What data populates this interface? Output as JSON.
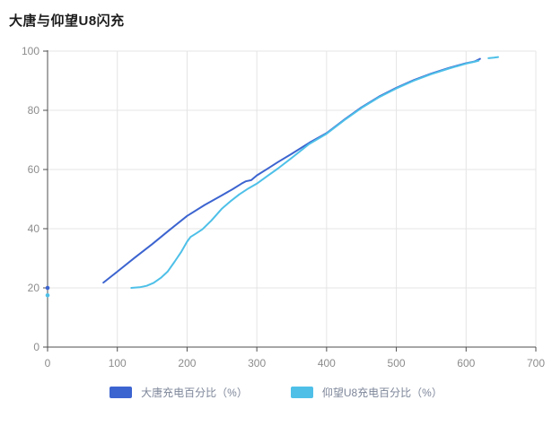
{
  "title": "大唐与仰望U8闪充",
  "colors": {
    "series_datang": "#3C64D0",
    "series_yangwang": "#4EC0E8",
    "grid": "#e4e4e4",
    "axis": "#4f4f4f",
    "tick_text": "#8c8c8c",
    "legend_text": "#7d8699",
    "title_text": "#1c1c1c",
    "background": "#ffffff"
  },
  "legend": {
    "items": [
      {
        "label": "大唐充电百分比（%）",
        "color": "#3C64D0"
      },
      {
        "label": "仰望U8充电百分比（%）",
        "color": "#4EC0E8"
      }
    ]
  },
  "chart_data": {
    "type": "line",
    "title": "大唐与仰望U8闪充",
    "xlabel": "",
    "ylabel": "",
    "xlim": [
      0,
      700
    ],
    "ylim": [
      0,
      100
    ],
    "x_ticks": [
      0,
      100,
      200,
      300,
      400,
      500,
      600,
      700
    ],
    "y_ticks": [
      0,
      20,
      40,
      60,
      80,
      100
    ],
    "grid": true,
    "legend_position": "bottom",
    "series": [
      {
        "name": "大唐充电百分比（%）",
        "color": "#3C64D0",
        "segments": [
          [
            [
              0,
              20
            ]
          ],
          [
            [
              80,
              21.8
            ],
            [
              100,
              25.5
            ],
            [
              125,
              30.2
            ],
            [
              150,
              34.8
            ],
            [
              175,
              39.6
            ],
            [
              200,
              44.3
            ],
            [
              225,
              48.0
            ],
            [
              250,
              51.3
            ],
            [
              265,
              53.3
            ],
            [
              278,
              55.2
            ],
            [
              284,
              56.0
            ],
            [
              292,
              56.4
            ],
            [
              300,
              58.0
            ],
            [
              315,
              60.2
            ],
            [
              330,
              62.5
            ],
            [
              350,
              65.3
            ],
            [
              375,
              69.0
            ],
            [
              400,
              72.3
            ],
            [
              425,
              76.8
            ],
            [
              450,
              81.0
            ],
            [
              475,
              84.6
            ],
            [
              500,
              87.6
            ],
            [
              525,
              90.2
            ],
            [
              550,
              92.4
            ],
            [
              575,
              94.3
            ],
            [
              600,
              95.9
            ],
            [
              612,
              96.5
            ],
            [
              620,
              97.4
            ]
          ]
        ]
      },
      {
        "name": "仰望U8充电百分比（%）",
        "color": "#4EC0E8",
        "segments": [
          [
            [
              0,
              17.5
            ]
          ],
          [
            [
              120,
              20.0
            ],
            [
              132,
              20.2
            ],
            [
              142,
              20.7
            ],
            [
              152,
              21.7
            ],
            [
              163,
              23.5
            ],
            [
              172,
              25.5
            ],
            [
              182,
              28.8
            ],
            [
              192,
              32.3
            ],
            [
              200,
              35.6
            ],
            [
              205,
              37.2
            ],
            [
              213,
              38.4
            ],
            [
              222,
              39.8
            ],
            [
              235,
              42.8
            ],
            [
              250,
              46.8
            ],
            [
              262,
              49.2
            ],
            [
              275,
              51.6
            ],
            [
              288,
              53.6
            ],
            [
              300,
              55.2
            ],
            [
              315,
              57.8
            ],
            [
              330,
              60.3
            ],
            [
              350,
              63.9
            ],
            [
              375,
              68.6
            ],
            [
              400,
              72.1
            ],
            [
              425,
              76.6
            ],
            [
              450,
              80.8
            ],
            [
              475,
              84.4
            ],
            [
              500,
              87.4
            ],
            [
              525,
              90.0
            ],
            [
              550,
              92.2
            ],
            [
              575,
              94.1
            ],
            [
              600,
              95.8
            ],
            [
              612,
              96.4
            ],
            [
              618,
              96.8
            ]
          ],
          [
            [
              632,
              97.6
            ],
            [
              640,
              97.8
            ],
            [
              646,
              98.0
            ]
          ]
        ]
      }
    ]
  }
}
